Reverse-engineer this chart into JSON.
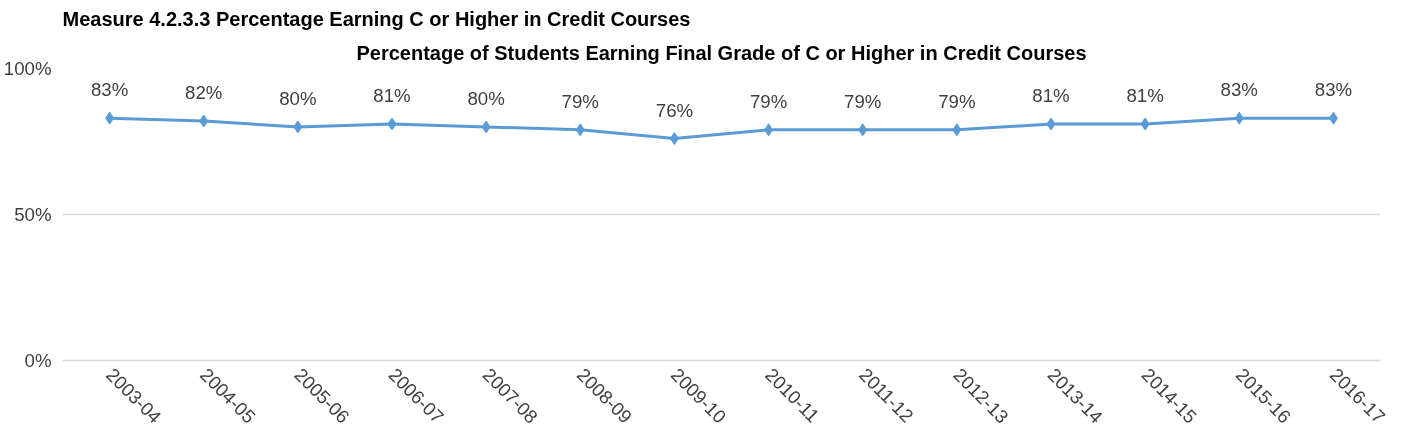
{
  "chart_data": {
    "type": "line",
    "title": "Percentage of Students Earning Final Grade of C or Higher in Credit Courses",
    "annotations": [
      "Measure 4.2.3.3 Percentage Earning C or Higher in Credit Courses"
    ],
    "categories": [
      "2003-04",
      "2004-05",
      "2005-06",
      "2006-07",
      "2007-08",
      "2008-09",
      "2009-10",
      "2010-11",
      "2011-12",
      "2012-13",
      "2013-14",
      "2014-15",
      "2015-16",
      "2016-17"
    ],
    "series": [
      {
        "color": "#5b9bd5",
        "values": [
          83,
          82,
          80,
          81,
          80,
          79,
          76,
          79,
          79,
          79,
          81,
          81,
          83,
          83
        ],
        "value_labels": [
          "83%",
          "82%",
          "80%",
          "81%",
          "80%",
          "79%",
          "76%",
          "79%",
          "79%",
          "79%",
          "81%",
          "81%",
          "83%",
          "83%"
        ]
      }
    ],
    "ylim": [
      0,
      100
    ],
    "yticks": [
      {
        "value": 0,
        "label": "0%"
      },
      {
        "value": 50,
        "label": "50%"
      },
      {
        "value": 100,
        "label": "100%"
      }
    ],
    "grid": "y",
    "marker": "diamond",
    "line_style": "solid"
  }
}
